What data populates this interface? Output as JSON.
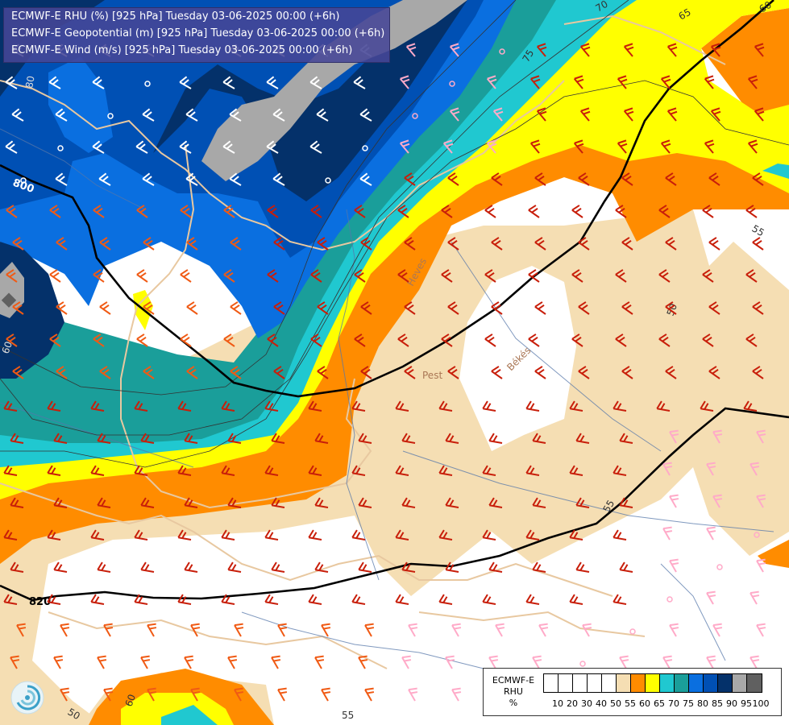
{
  "header": {
    "lines": [
      "ECMWF-E RHU (%) [925 hPa] Tuesday 03-06-2025 00:00 (+6h)",
      "ECMWF-E Geopotential (m) [925 hPa] Tuesday 03-06-2025 00:00 (+6h)",
      "ECMWF-E Wind (m/s) [925 hPa] Tuesday 03-06-2025 00:00 (+6h)"
    ]
  },
  "legend": {
    "title_lines": [
      "ECMWF-E",
      "RHU",
      "%"
    ],
    "tick_labels": [
      "10",
      "20",
      "30",
      "40",
      "50",
      "55",
      "60",
      "65",
      "70",
      "75",
      "80",
      "85",
      "90",
      "95",
      "100"
    ],
    "colors": [
      "#ffffff",
      "#ffffff",
      "#ffffff",
      "#ffffff",
      "#ffffff",
      "#f5deb3",
      "#ff8c00",
      "#ffff00",
      "#20c8d0",
      "#1a9e9a",
      "#0a6fe0",
      "#0050b4",
      "#04316a",
      "#a8a8a8",
      "#606060"
    ]
  },
  "geopotential_labels": [
    "800",
    "820"
  ],
  "rhu_contour_labels": [
    "70",
    "65",
    "60",
    "55",
    "50",
    "55",
    "60",
    "50",
    "55",
    "75",
    "60",
    "80"
  ],
  "place_labels": [
    "Heves",
    "Pest",
    "Békés"
  ],
  "colors": {
    "header_bg": "#46469a",
    "contour": "#000000",
    "border": "#e8c8a0",
    "river": "#5577aa",
    "barb_strong": "#c81e0a",
    "barb_medium": "#f05a14",
    "barb_light": "#ffffff",
    "barb_pale": "#ffaac8"
  },
  "icons": [
    "ecmwf-logo-icon",
    "wind-barb-icon",
    "calm-wind-circle-icon"
  ]
}
